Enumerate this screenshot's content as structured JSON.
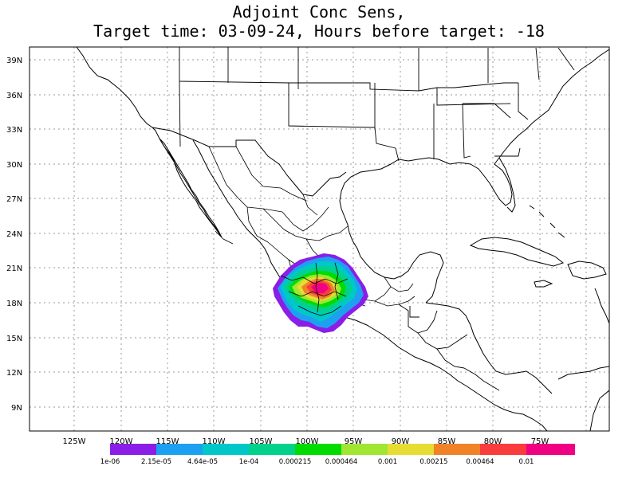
{
  "title": {
    "line1": "Adjoint Conc Sens,",
    "line2": "Target time: 03-09-24, Hours before target: -18"
  },
  "axes": {
    "lon_labels": [
      "125W",
      "120W",
      "115W",
      "110W",
      "105W",
      "100W",
      "95W",
      "90W",
      "85W",
      "80W",
      "75W"
    ],
    "lat_labels": [
      "39N",
      "36N",
      "33N",
      "30N",
      "27N",
      "24N",
      "21N",
      "18N",
      "15N",
      "12N",
      "9N"
    ],
    "lon_range": [
      -130.5,
      -70.5
    ],
    "lat_range": [
      7.0,
      40.0
    ],
    "grid": "dotted"
  },
  "colorbar": {
    "labels": [
      "1e-06",
      "2.15e-05",
      "4.64e-05",
      "1e-04",
      "0.000215",
      "0.000464",
      "0.001",
      "0.00215",
      "0.00464",
      "0.01"
    ],
    "colors": [
      "#8a1ee6",
      "#1ea0f0",
      "#00c8c8",
      "#00d28c",
      "#00dc00",
      "#a0e632",
      "#e6dc32",
      "#f08228",
      "#fa3c3c",
      "#f00082"
    ]
  },
  "chart_data": {
    "type": "heatmap",
    "title": "Adjoint Conc Sens,",
    "subtitle": "Target time: 03-09-24, Hours before target: -18",
    "x_range_lon": [
      -130.5,
      -70.5
    ],
    "y_range_lat": [
      7.0,
      40.0
    ],
    "contour_levels": [
      1e-06,
      2.15e-05,
      4.64e-05,
      0.0001,
      0.000215,
      0.000464,
      0.001,
      0.00215,
      0.00464,
      0.01
    ],
    "plume_center": {
      "lon": -99.5,
      "lat": 19.0
    }
  }
}
